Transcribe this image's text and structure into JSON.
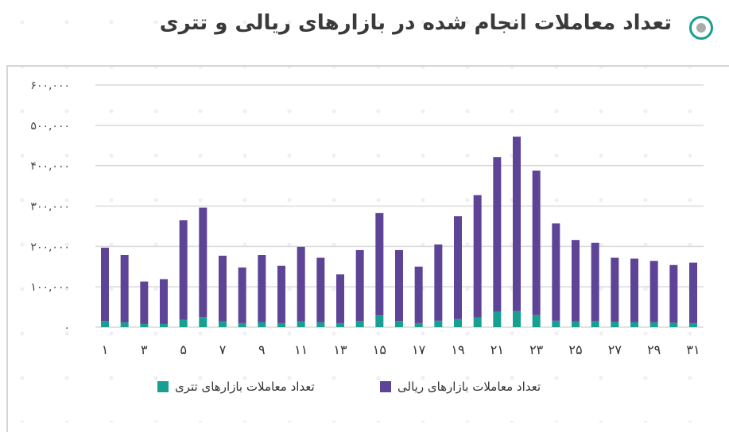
{
  "title": "تعداد معاملات انجام شده در بازارهای ریالی و تتری",
  "chart_data": {
    "type": "bar",
    "stacked": true,
    "title": "تعداد معاملات انجام شده در بازارهای ریالی و تتری",
    "x": [
      1,
      2,
      3,
      4,
      5,
      6,
      7,
      8,
      9,
      10,
      11,
      12,
      13,
      14,
      15,
      16,
      17,
      18,
      19,
      20,
      21,
      22,
      23,
      24,
      25,
      26,
      27,
      28,
      29,
      30,
      31
    ],
    "x_tick_labels": [
      "۱",
      "۳",
      "۵",
      "۷",
      "۹",
      "۱۱",
      "۱۳",
      "۱۵",
      "۱۷",
      "۱۹",
      "۲۱",
      "۲۳",
      "۲۵",
      "۲۷",
      "۲۹",
      "۳۱"
    ],
    "y_tick_labels": [
      "۰",
      "۱۰۰,۰۰۰",
      "۲۰۰,۰۰۰",
      "۳۰۰,۰۰۰",
      "۴۰۰,۰۰۰",
      "۵۰۰,۰۰۰",
      "۶۰۰,۰۰۰"
    ],
    "ylim": [
      0,
      600000
    ],
    "grid": true,
    "legend_position": "bottom",
    "series": [
      {
        "name": "تعداد معاملات بازارهای تتری",
        "color": "#17a092",
        "values": [
          15000,
          12000,
          8000,
          8000,
          18000,
          25000,
          14000,
          10000,
          12000,
          10000,
          14000,
          12000,
          10000,
          15000,
          29000,
          15000,
          10000,
          16000,
          20000,
          24000,
          38000,
          40000,
          30000,
          16000,
          14000,
          15000,
          13000,
          12000,
          12000,
          11000,
          10000
        ]
      },
      {
        "name": "تعداد معاملات بازارهای ریالی",
        "color": "#5e4497",
        "values": [
          182000,
          167000,
          105000,
          111000,
          247000,
          271000,
          163000,
          138000,
          167000,
          142000,
          185000,
          160000,
          121000,
          176000,
          254000,
          176000,
          140000,
          189000,
          255000,
          303000,
          383000,
          432000,
          358000,
          241000,
          202000,
          194000,
          159000,
          158000,
          152000,
          143000,
          150000
        ]
      }
    ]
  }
}
